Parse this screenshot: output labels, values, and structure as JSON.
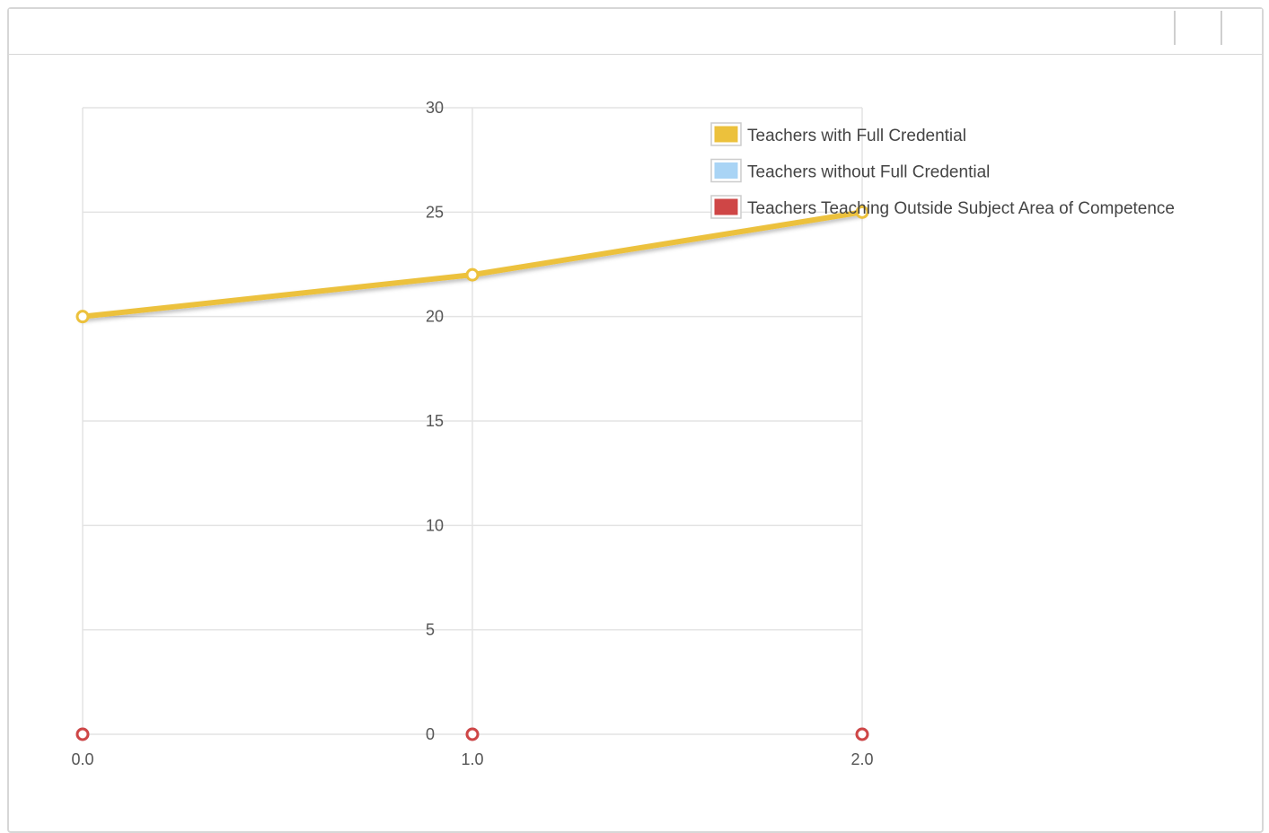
{
  "chart_data": {
    "type": "line",
    "x": [
      0,
      1,
      2
    ],
    "x_tick_labels": [
      "0.0",
      "1.0",
      "2.0"
    ],
    "y_ticks": [
      0,
      5,
      10,
      15,
      20,
      25,
      30
    ],
    "y_tick_labels": [
      "0",
      "5",
      "10",
      "15",
      "20",
      "25",
      "30"
    ],
    "xlim": [
      0,
      2
    ],
    "ylim": [
      0,
      30
    ],
    "grid": true,
    "legend_position": "top-right",
    "series": [
      {
        "name": "Teachers with Full Credential",
        "values": [
          20,
          22,
          25
        ],
        "color": "#ecc13c"
      },
      {
        "name": "Teachers without Full Credential",
        "values": [
          0,
          0,
          0
        ],
        "color": "#a9d4f5"
      },
      {
        "name": "Teachers Teaching Outside Subject Area of Competence",
        "values": [
          0,
          0,
          0
        ],
        "color": "#cf4646"
      }
    ]
  },
  "header": {
    "buttons": [
      "header-button-1",
      "header-button-2"
    ]
  }
}
